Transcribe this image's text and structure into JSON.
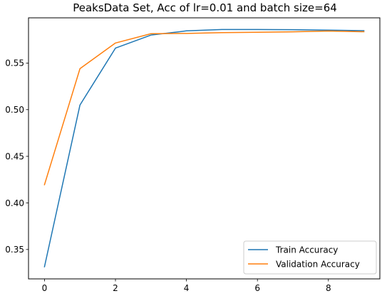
{
  "chart_data": {
    "type": "line",
    "title": "PeaksData Set, Acc of lr=0.01 and batch size=64",
    "xlabel": "",
    "ylabel": "",
    "x": [
      0,
      1,
      2,
      3,
      4,
      5,
      6,
      7,
      8,
      9
    ],
    "xlim": [
      -0.45,
      9.45
    ],
    "ylim": [
      0.3185,
      0.5985
    ],
    "xticks": [
      0,
      2,
      4,
      6,
      8
    ],
    "yticks": [
      0.35,
      0.4,
      0.45,
      0.5,
      0.55
    ],
    "ytick_labels": [
      "0.35",
      "0.40",
      "0.45",
      "0.50",
      "0.55"
    ],
    "grid": false,
    "legend_position": "bottom-right",
    "series": [
      {
        "name": "Train Accuracy",
        "color": "#1f77b4",
        "values": [
          0.3315,
          0.505,
          0.566,
          0.58,
          0.5845,
          0.586,
          0.586,
          0.5858,
          0.5853,
          0.5847
        ]
      },
      {
        "name": "Validation Accuracy",
        "color": "#ff7f0e",
        "values": [
          0.4195,
          0.544,
          0.5715,
          0.5815,
          0.5818,
          0.5826,
          0.583,
          0.5835,
          0.5843,
          0.5836
        ]
      }
    ]
  }
}
